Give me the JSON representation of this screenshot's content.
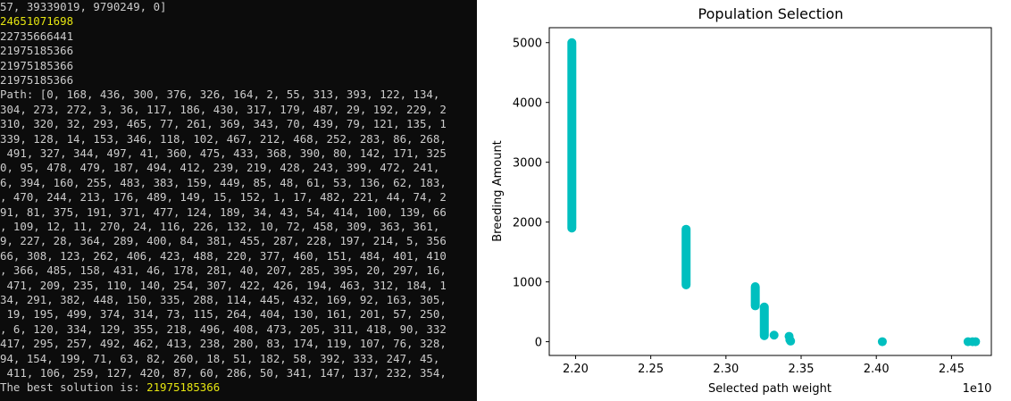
{
  "terminal": {
    "lines": [
      [
        {
          "t": "57, 39339019, 9790249, 0]"
        }
      ],
      [
        {
          "t": "24651071698",
          "hl": true
        }
      ],
      [
        {
          "t": "22735666441"
        }
      ],
      [
        {
          "t": "21975185366"
        }
      ],
      [
        {
          "t": "21975185366"
        }
      ],
      [
        {
          "t": "21975185366"
        }
      ],
      [
        {
          "t": "Path: [0, 168, 436, 300, 376, 326, 164, 2, 55, 313, 393, 122, 134,"
        }
      ],
      [
        {
          "t": "304, 273, 272, 3, 36, 117, 186, 430, 317, 179, 487, 29, 192, 229, 2"
        }
      ],
      [
        {
          "t": "310, 320, 32, 293, 465, 77, 261, 369, 343, 70, 439, 79, 121, 135, 1"
        }
      ],
      [
        {
          "t": "339, 128, 14, 153, 346, 118, 102, 467, 212, 468, 252, 283, 86, 268,"
        }
      ],
      [
        {
          "t": " 491, 327, 344, 497, 41, 360, 475, 433, 368, 390, 80, 142, 171, 325"
        }
      ],
      [
        {
          "t": "0, 95, 478, 479, 187, 494, 412, 239, 219, 428, 243, 399, 472, 241,"
        }
      ],
      [
        {
          "t": "6, 394, 160, 255, 483, 383, 159, 449, 85, 48, 61, 53, 136, 62, 183,"
        }
      ],
      [
        {
          "t": ", 470, 244, 213, 176, 489, 149, 15, 152, 1, 17, 482, 221, 44, 74, 2"
        }
      ],
      [
        {
          "t": "91, 81, 375, 191, 371, 477, 124, 189, 34, 43, 54, 414, 100, 139, 66"
        }
      ],
      [
        {
          "t": ", 109, 12, 11, 270, 24, 116, 226, 132, 10, 72, 458, 309, 363, 361,"
        }
      ],
      [
        {
          "t": "9, 227, 28, 364, 289, 400, 84, 381, 455, 287, 228, 197, 214, 5, 356"
        }
      ],
      [
        {
          "t": "66, 308, 123, 262, 406, 423, 488, 220, 377, 460, 151, 484, 401, 410"
        }
      ],
      [
        {
          "t": ", 366, 485, 158, 431, 46, 178, 281, 40, 207, 285, 395, 20, 297, 16,"
        }
      ],
      [
        {
          "t": " 471, 209, 235, 110, 140, 254, 307, 422, 426, 194, 463, 312, 184, 1"
        }
      ],
      [
        {
          "t": "34, 291, 382, 448, 150, 335, 288, 114, 445, 432, 169, 92, 163, 305,"
        }
      ],
      [
        {
          "t": " 19, 195, 499, 374, 314, 73, 115, 264, 404, 130, 161, 201, 57, 250,"
        }
      ],
      [
        {
          "t": ", 6, 120, 334, 129, 355, 218, 496, 408, 473, 205, 311, 418, 90, 332"
        }
      ],
      [
        {
          "t": "417, 295, 257, 492, 462, 413, 238, 280, 83, 174, 119, 107, 76, 328,"
        }
      ],
      [
        {
          "t": "94, 154, 199, 71, 63, 82, 260, 18, 51, 182, 58, 392, 333, 247, 45,"
        }
      ],
      [
        {
          "t": " 411, 106, 259, 127, 420, 87, 60, 286, 50, 341, 147, 137, 232, 354,"
        }
      ],
      [
        {
          "t": "The best solution is: "
        },
        {
          "t": "21975185366",
          "hl": true
        }
      ]
    ]
  },
  "chart_data": {
    "type": "scatter",
    "title": "Population Selection",
    "xlabel": "Selected path weight",
    "ylabel": "Breeding Amount",
    "x_offset_text": "1e10",
    "xlim": [
      2.1825,
      2.4765
    ],
    "ylim": [
      -230,
      5250
    ],
    "x_ticks": [
      2.2,
      2.25,
      2.3,
      2.35,
      2.4,
      2.45
    ],
    "x_tick_labels": [
      "2.20",
      "2.25",
      "2.30",
      "2.35",
      "2.40",
      "2.45"
    ],
    "y_ticks": [
      0,
      1000,
      2000,
      3000,
      4000,
      5000
    ],
    "y_tick_labels": [
      "0",
      "1000",
      "2000",
      "3000",
      "4000",
      "5000"
    ],
    "grid": false,
    "color": "#00bfbf",
    "segments": [
      {
        "x": 2.19752,
        "y_from": 1900,
        "y_to": 5000
      },
      {
        "x": 2.2735,
        "y_from": 950,
        "y_to": 1880
      },
      {
        "x": 2.3195,
        "y_from": 600,
        "y_to": 920
      },
      {
        "x": 2.3255,
        "y_from": 100,
        "y_to": 580
      }
    ],
    "points": [
      {
        "x": 2.332,
        "y": 110
      },
      {
        "x": 2.342,
        "y": 90
      },
      {
        "x": 2.3425,
        "y": 30
      },
      {
        "x": 2.343,
        "y": 10
      },
      {
        "x": 2.404,
        "y": 0
      },
      {
        "x": 2.461,
        "y": 0
      },
      {
        "x": 2.464,
        "y": 0
      },
      {
        "x": 2.466,
        "y": 0
      }
    ]
  }
}
